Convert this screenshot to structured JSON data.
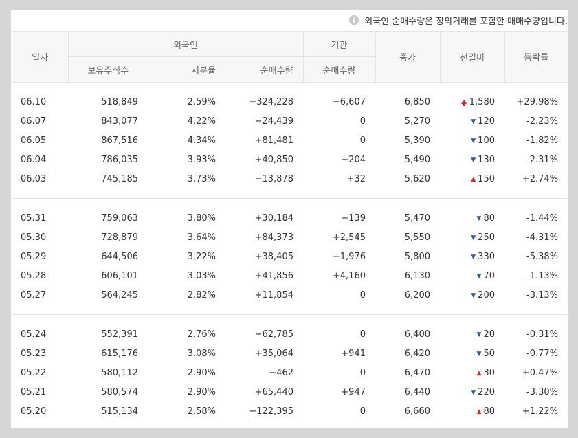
{
  "notice": {
    "icon": "info-icon",
    "text": "외국인 순매수량은 장외거래를 포함한 매매수량입니다."
  },
  "header": {
    "date": "일자",
    "foreign_group": "외국인",
    "institution_group": "기관",
    "close": "종가",
    "change": "전일비",
    "rate": "등락률",
    "holdings": "보유주식수",
    "ratio": "지분율",
    "foreign_net": "순매수량",
    "inst_net": "순매수량"
  },
  "colors": {
    "up": "#ee2222",
    "down": "#2a55c5"
  },
  "rows": [
    {
      "date": "06.10",
      "holdings": "518,849",
      "ratio": "2.59%",
      "foreign_net": "−324,228",
      "foreign_dir": "down",
      "inst_net": "−6,607",
      "inst_dir": "down",
      "close": "6,850",
      "close_dir": "up",
      "change": "1,580",
      "change_dir": "limit-up",
      "rate": "+29.98%"
    },
    {
      "date": "06.07",
      "holdings": "843,077",
      "ratio": "4.22%",
      "foreign_net": "−24,439",
      "foreign_dir": "down",
      "inst_net": "0",
      "inst_dir": "flat",
      "close": "5,270",
      "close_dir": "down",
      "change": "120",
      "change_dir": "down",
      "rate": "-2.23%"
    },
    {
      "date": "06.05",
      "holdings": "867,516",
      "ratio": "4.34%",
      "foreign_net": "+81,481",
      "foreign_dir": "up",
      "inst_net": "0",
      "inst_dir": "flat",
      "close": "5,390",
      "close_dir": "down",
      "change": "100",
      "change_dir": "down",
      "rate": "-1.82%"
    },
    {
      "date": "06.04",
      "holdings": "786,035",
      "ratio": "3.93%",
      "foreign_net": "+40,850",
      "foreign_dir": "up",
      "inst_net": "−204",
      "inst_dir": "down",
      "close": "5,490",
      "close_dir": "down",
      "change": "130",
      "change_dir": "down",
      "rate": "-2.31%"
    },
    {
      "date": "06.03",
      "holdings": "745,185",
      "ratio": "3.73%",
      "foreign_net": "−13,878",
      "foreign_dir": "down",
      "inst_net": "+32",
      "inst_dir": "up",
      "close": "5,620",
      "close_dir": "up",
      "change": "150",
      "change_dir": "up",
      "rate": "+2.74%"
    },
    {
      "date": "05.31",
      "holdings": "759,063",
      "ratio": "3.80%",
      "foreign_net": "+30,184",
      "foreign_dir": "up",
      "inst_net": "−139",
      "inst_dir": "down",
      "close": "5,470",
      "close_dir": "down",
      "change": "80",
      "change_dir": "down",
      "rate": "-1.44%"
    },
    {
      "date": "05.30",
      "holdings": "728,879",
      "ratio": "3.64%",
      "foreign_net": "+84,373",
      "foreign_dir": "up",
      "inst_net": "+2,545",
      "inst_dir": "up",
      "close": "5,550",
      "close_dir": "down",
      "change": "250",
      "change_dir": "down",
      "rate": "-4.31%"
    },
    {
      "date": "05.29",
      "holdings": "644,506",
      "ratio": "3.22%",
      "foreign_net": "+38,405",
      "foreign_dir": "up",
      "inst_net": "−1,976",
      "inst_dir": "down",
      "close": "5,800",
      "close_dir": "down",
      "change": "330",
      "change_dir": "down",
      "rate": "-5.38%"
    },
    {
      "date": "05.28",
      "holdings": "606,101",
      "ratio": "3.03%",
      "foreign_net": "+41,856",
      "foreign_dir": "up",
      "inst_net": "+4,160",
      "inst_dir": "up",
      "close": "6,130",
      "close_dir": "down",
      "change": "70",
      "change_dir": "down",
      "rate": "-1.13%"
    },
    {
      "date": "05.27",
      "holdings": "564,245",
      "ratio": "2.82%",
      "foreign_net": "+11,854",
      "foreign_dir": "up",
      "inst_net": "0",
      "inst_dir": "flat",
      "close": "6,200",
      "close_dir": "down",
      "change": "200",
      "change_dir": "down",
      "rate": "-3.13%"
    },
    {
      "date": "05.24",
      "holdings": "552,391",
      "ratio": "2.76%",
      "foreign_net": "−62,785",
      "foreign_dir": "down",
      "inst_net": "0",
      "inst_dir": "flat",
      "close": "6,400",
      "close_dir": "down",
      "change": "20",
      "change_dir": "down",
      "rate": "-0.31%"
    },
    {
      "date": "05.23",
      "holdings": "615,176",
      "ratio": "3.08%",
      "foreign_net": "+35,064",
      "foreign_dir": "up",
      "inst_net": "+941",
      "inst_dir": "up",
      "close": "6,420",
      "close_dir": "down",
      "change": "50",
      "change_dir": "down",
      "rate": "-0.77%"
    },
    {
      "date": "05.22",
      "holdings": "580,112",
      "ratio": "2.90%",
      "foreign_net": "−462",
      "foreign_dir": "down",
      "inst_net": "0",
      "inst_dir": "flat",
      "close": "6,470",
      "close_dir": "up",
      "change": "30",
      "change_dir": "up",
      "rate": "+0.47%"
    },
    {
      "date": "05.21",
      "holdings": "580,574",
      "ratio": "2.90%",
      "foreign_net": "+65,440",
      "foreign_dir": "up",
      "inst_net": "+947",
      "inst_dir": "up",
      "close": "6,440",
      "close_dir": "down",
      "change": "220",
      "change_dir": "down",
      "rate": "-3.30%"
    },
    {
      "date": "05.20",
      "holdings": "515,134",
      "ratio": "2.58%",
      "foreign_net": "−122,395",
      "foreign_dir": "down",
      "inst_net": "0",
      "inst_dir": "flat",
      "close": "6,660",
      "close_dir": "up",
      "change": "80",
      "change_dir": "up",
      "rate": "+1.22%"
    }
  ]
}
